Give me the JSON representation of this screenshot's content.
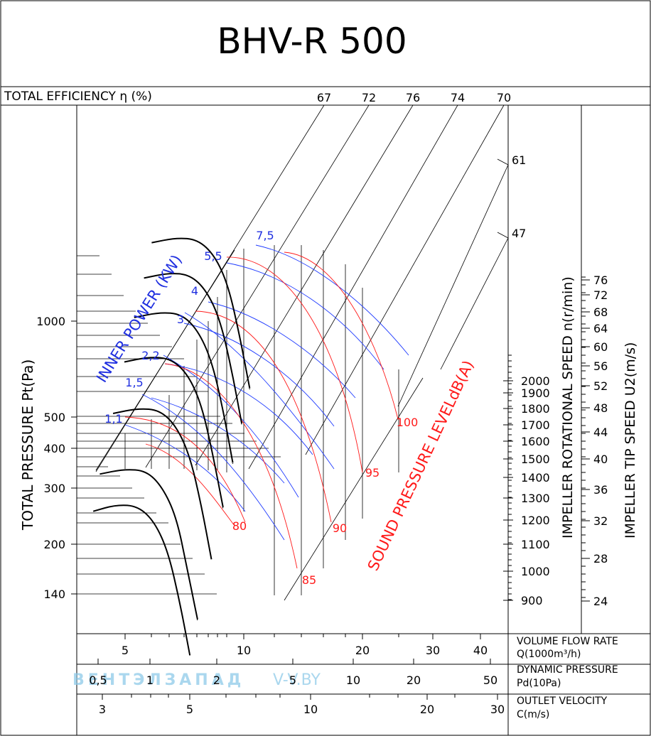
{
  "header": {
    "title": "BHV-R 500"
  },
  "efficiency_axis": {
    "label": "TOTAL EFFICIENCY η (%)",
    "top_values": [
      "67",
      "72",
      "76",
      "74",
      "70"
    ],
    "side_values": [
      "61",
      "47"
    ]
  },
  "y_axis": {
    "label": "TOTAL PRESSURE Pt(Pa)",
    "ticks": [
      "1000",
      "500",
      "400",
      "300",
      "200",
      "140"
    ]
  },
  "rpm_axis": {
    "label": "IMPELLER ROTATIONAL SPEED n(r/min)",
    "ticks": [
      "2000",
      "1900",
      "1800",
      "1700",
      "1600",
      "1500",
      "1400",
      "1300",
      "1200",
      "1100",
      "1000",
      "900"
    ]
  },
  "tip_axis": {
    "label": "IMPELLER TIP SPEED U2(m/s)",
    "ticks": [
      "76",
      "72",
      "68",
      "64",
      "60",
      "56",
      "52",
      "48",
      "44",
      "40",
      "36",
      "32",
      "28",
      "24"
    ]
  },
  "power_labels": {
    "title": "INNER POWER (KW)",
    "values": [
      "7,5",
      "5,5",
      "4",
      "3",
      "2,2",
      "1,5",
      "1,1"
    ]
  },
  "sound_labels": {
    "title": "SOUND PRESSURE LEVELdB(A)",
    "values": [
      "100",
      "95",
      "90",
      "85",
      "80"
    ]
  },
  "flow_axis": {
    "label1": "VOLUME FLOW RATE",
    "label2": "Q(1000m³/h)",
    "ticks": [
      "5",
      "10",
      "20",
      "30",
      "40"
    ]
  },
  "dynamic_axis": {
    "label1": "DYNAMIC PRESSURE",
    "label2": "Pd(10Pa)",
    "ticks": [
      "0,5",
      "1",
      "2",
      "5",
      "10",
      "20",
      "50"
    ]
  },
  "velocity_axis": {
    "label1": "OUTLET VELOCITY",
    "label2": "C(m/s)",
    "ticks": [
      "3",
      "5",
      "10",
      "20",
      "30"
    ]
  },
  "watermark": {
    "brand": "ВЕНТЭЛЗАПАД",
    "site": "V-V.BY"
  },
  "chart_data": {
    "type": "line",
    "title": "BHV-R 500",
    "xlabel": "VOLUME FLOW RATE Q(1000m³/h)",
    "ylabel": "TOTAL PRESSURE Pt(Pa)",
    "x_scale": "log",
    "y_scale": "log",
    "rotational_speeds_rpm": [
      900,
      1000,
      1100,
      1200,
      1300,
      1400,
      1500,
      1600,
      1700,
      1800,
      1900,
      2000
    ],
    "tip_speeds_ms": [
      24,
      28,
      32,
      36,
      40,
      44,
      48,
      52,
      56,
      60,
      64,
      68,
      72,
      76
    ],
    "efficiency_lines_percent": [
      67,
      72,
      76,
      74,
      70,
      61,
      47
    ],
    "inner_power_kw": [
      1.1,
      1.5,
      2.2,
      3,
      4,
      5.5,
      7.5
    ],
    "sound_pressure_dba": [
      80,
      85,
      90,
      95,
      100
    ],
    "secondary_axes": {
      "dynamic_pressure_10Pa": [
        0.5,
        1,
        2,
        5,
        10,
        20,
        50
      ],
      "outlet_velocity_ms": [
        3,
        5,
        10,
        20,
        30
      ]
    },
    "series": [
      {
        "name": "900",
        "x": [
          3.3,
          4.5,
          6.0,
          7.5,
          9.0,
          10.5,
          12.0
        ],
        "y": [
          320,
          333,
          330,
          300,
          250,
          185,
          135
        ]
      },
      {
        "name": "1000",
        "x": [
          3.6,
          5.0,
          6.7,
          8.3,
          10.0,
          11.5,
          13.3
        ],
        "y": [
          400,
          412,
          408,
          370,
          310,
          230,
          167
        ]
      },
      {
        "name": "1200",
        "x": [
          4.3,
          6.0,
          8.0,
          10.0,
          12.0,
          14.0,
          16.0
        ],
        "y": [
          575,
          593,
          587,
          533,
          446,
          330,
          240
        ]
      },
      {
        "name": "1400",
        "x": [
          5.0,
          7.0,
          9.3,
          11.7,
          14.0,
          16.3,
          18.7
        ],
        "y": [
          783,
          807,
          799,
          726,
          607,
          450,
          327
        ]
      },
      {
        "name": "1600",
        "x": [
          5.7,
          8.0,
          10.7,
          13.3,
          16.0,
          18.7,
          21.3
        ],
        "y": [
          1022,
          1054,
          1044,
          948,
          793,
          587,
          427
        ]
      },
      {
        "name": "1800",
        "x": [
          6.5,
          9.0,
          12.0,
          15.0,
          18.0,
          21.0,
          24.0
        ],
        "y": [
          1294,
          1334,
          1321,
          1200,
          1004,
          743,
          540
        ]
      },
      {
        "name": "2000",
        "x": [
          7.2,
          10.0,
          13.3,
          16.7,
          20.0,
          23.3,
          26.7
        ],
        "y": [
          1600,
          1647,
          1631,
          1481,
          1240,
          917,
          667
        ]
      }
    ]
  }
}
